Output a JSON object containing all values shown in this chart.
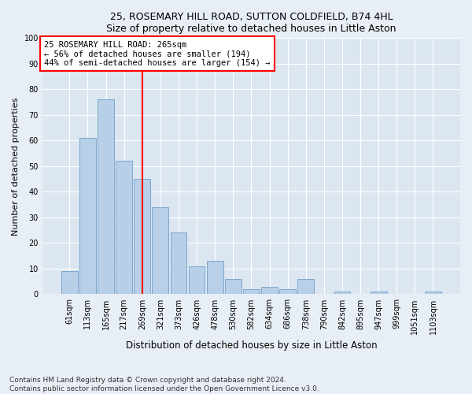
{
  "title1": "25, ROSEMARY HILL ROAD, SUTTON COLDFIELD, B74 4HL",
  "title2": "Size of property relative to detached houses in Little Aston",
  "xlabel": "Distribution of detached houses by size in Little Aston",
  "ylabel": "Number of detached properties",
  "categories": [
    "61sqm",
    "113sqm",
    "165sqm",
    "217sqm",
    "269sqm",
    "321sqm",
    "373sqm",
    "426sqm",
    "478sqm",
    "530sqm",
    "582sqm",
    "634sqm",
    "686sqm",
    "738sqm",
    "790sqm",
    "842sqm",
    "895sqm",
    "947sqm",
    "999sqm",
    "1051sqm",
    "1103sqm"
  ],
  "values": [
    9,
    61,
    76,
    52,
    45,
    34,
    24,
    11,
    13,
    6,
    2,
    3,
    2,
    6,
    0,
    1,
    0,
    1,
    0,
    0,
    1
  ],
  "bar_color": "#b8cfe8",
  "bar_edge_color": "#7ba7d0",
  "property_label": "25 ROSEMARY HILL ROAD: 265sqm",
  "annotation_line1": "← 56% of detached houses are smaller (194)",
  "annotation_line2": "44% of semi-detached houses are larger (154) →",
  "vline_x_index": 4,
  "vline_color": "red",
  "annotation_box_color": "red",
  "ylim": [
    0,
    100
  ],
  "yticks": [
    0,
    10,
    20,
    30,
    40,
    50,
    60,
    70,
    80,
    90,
    100
  ],
  "footnote1": "Contains HM Land Registry data © Crown copyright and database right 2024.",
  "footnote2": "Contains public sector information licensed under the Open Government Licence v3.0.",
  "bg_color": "#e8eef5",
  "plot_bg_color": "#dce6f0",
  "title_fontsize": 9,
  "ylabel_fontsize": 8,
  "xlabel_fontsize": 8.5,
  "tick_fontsize": 7,
  "annotation_fontsize": 7.5,
  "footnote_fontsize": 6.5
}
